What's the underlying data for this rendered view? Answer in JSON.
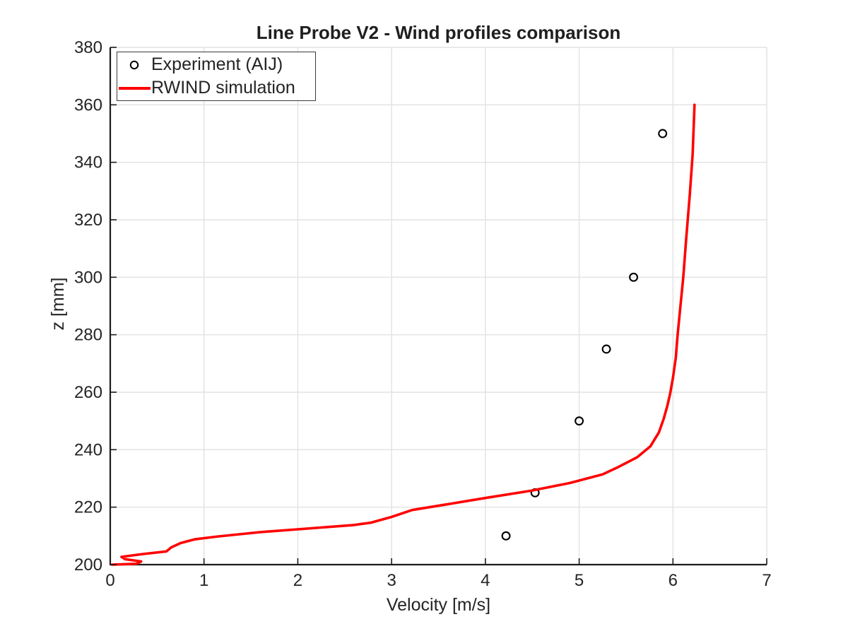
{
  "title": "Line Probe V2 - Wind profiles comparison",
  "axes": {
    "xlabel": "Velocity [m/s]",
    "ylabel": "z [mm]",
    "xticks": [
      0,
      1,
      2,
      3,
      4,
      5,
      6,
      7
    ],
    "yticks": [
      200,
      220,
      240,
      260,
      280,
      300,
      320,
      340,
      360,
      380
    ]
  },
  "legend": {
    "items": [
      {
        "label": "Experiment (AIJ)",
        "marker": "open-circle"
      },
      {
        "label": "RWIND simulation",
        "marker": "red-line"
      }
    ]
  },
  "colors": {
    "simulation_line": "#ff0000",
    "experiment_marker": "#000000",
    "grid": "#e2e2e2",
    "spine": "#1c1c1c",
    "text": "#242424"
  },
  "chart_data": {
    "type": "line",
    "title": "Line Probe V2 - Wind profiles comparison",
    "xlabel": "Velocity [m/s]",
    "ylabel": "z [mm]",
    "xlim": [
      0,
      7
    ],
    "ylim": [
      200,
      380
    ],
    "grid": true,
    "legend_position": "top-left",
    "series": [
      {
        "name": "Experiment (AIJ)",
        "type": "scatter",
        "marker": "open-circle",
        "color": "#000000",
        "points": [
          [
            4.22,
            210
          ],
          [
            4.53,
            225
          ],
          [
            5.0,
            250
          ],
          [
            5.29,
            275
          ],
          [
            5.58,
            300
          ],
          [
            5.89,
            350
          ]
        ]
      },
      {
        "name": "RWIND simulation",
        "type": "line",
        "color": "#ff0000",
        "points": [
          [
            0.02,
            200.0
          ],
          [
            0.28,
            200.3
          ],
          [
            0.33,
            201.1
          ],
          [
            0.16,
            201.9
          ],
          [
            0.12,
            202.7
          ],
          [
            0.35,
            203.7
          ],
          [
            0.6,
            204.6
          ],
          [
            0.65,
            206.0
          ],
          [
            0.75,
            207.5
          ],
          [
            0.9,
            208.8
          ],
          [
            1.15,
            209.8
          ],
          [
            1.6,
            211.3
          ],
          [
            2.0,
            212.3
          ],
          [
            2.6,
            213.8
          ],
          [
            2.78,
            214.6
          ],
          [
            3.0,
            216.6
          ],
          [
            3.22,
            219.0
          ],
          [
            3.65,
            221.3
          ],
          [
            4.0,
            223.2
          ],
          [
            4.5,
            225.8
          ],
          [
            4.9,
            228.4
          ],
          [
            5.25,
            231.4
          ],
          [
            5.42,
            234.0
          ],
          [
            5.62,
            237.4
          ],
          [
            5.76,
            241.2
          ],
          [
            5.85,
            246.0
          ],
          [
            5.9,
            250.6
          ],
          [
            5.94,
            255.2
          ],
          [
            5.97,
            259.5
          ],
          [
            6.0,
            265.0
          ],
          [
            6.03,
            272.0
          ],
          [
            6.05,
            280.0
          ],
          [
            6.08,
            290.0
          ],
          [
            6.11,
            300.0
          ],
          [
            6.14,
            313.0
          ],
          [
            6.18,
            329.0
          ],
          [
            6.21,
            343.0
          ],
          [
            6.23,
            360.0
          ]
        ]
      }
    ]
  }
}
